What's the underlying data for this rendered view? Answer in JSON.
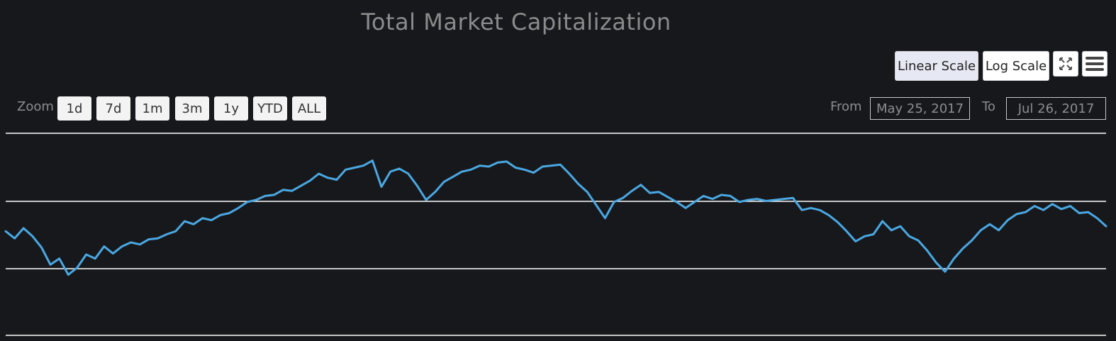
{
  "title": "Total Market Capitalization",
  "scale_buttons": {
    "linear": "Linear Scale",
    "log": "Log Scale",
    "selected": "linear"
  },
  "icons": {
    "fullscreen": "fullscreen-icon",
    "menu": "hamburger-menu-icon"
  },
  "zoom": {
    "label": "Zoom",
    "buttons": [
      "1d",
      "7d",
      "1m",
      "3m",
      "1y",
      "YTD",
      "ALL"
    ]
  },
  "range": {
    "from_label": "From",
    "from_value": "May 25, 2017",
    "to_label": "To",
    "to_value": "Jul 26, 2017"
  },
  "colors": {
    "background": "#17181c",
    "series": "#4aa8e2",
    "grid": "#ffffff",
    "title": "#8b8b8b"
  },
  "chart_data": {
    "type": "line",
    "title": "Total Market Capitalization",
    "grid": true,
    "x_range": [
      "May 25, 2017",
      "Jul 26, 2017"
    ],
    "ylim": [
      0,
      100
    ],
    "note_units": "relative values (no y-axis labels shown)",
    "series": [
      {
        "name": "",
        "values": [
          51.5,
          48.0,
          53.0,
          49.0,
          43.5,
          35.0,
          38.0,
          30.0,
          33.5,
          40.0,
          38.0,
          44.0,
          40.5,
          44.0,
          46.0,
          45.0,
          47.5,
          48.0,
          50.0,
          51.5,
          56.5,
          55.0,
          58.0,
          57.0,
          59.5,
          60.5,
          63.0,
          66.0,
          67.0,
          69.0,
          69.5,
          72.0,
          71.5,
          74.0,
          76.5,
          80.0,
          78.0,
          77.0,
          82.0,
          83.0,
          84.0,
          86.5,
          73.5,
          81.0,
          82.5,
          80.0,
          74.0,
          67.0,
          71.0,
          76.0,
          78.5,
          81.0,
          82.0,
          84.0,
          83.5,
          85.5,
          86.0,
          83.0,
          82.0,
          80.5,
          83.5,
          84.0,
          84.5,
          80.0,
          75.0,
          71.0,
          64.5,
          58.0,
          66.0,
          68.0,
          71.5,
          74.5,
          70.5,
          71.0,
          68.5,
          66.0,
          63.0,
          66.0,
          69.0,
          67.5,
          69.5,
          69.0,
          66.0,
          67.0,
          67.5,
          66.5,
          67.0,
          67.5,
          68.0,
          62.0,
          63.0,
          62.0,
          59.5,
          56.0,
          51.5,
          46.5,
          49.0,
          50.0,
          56.5,
          52.0,
          54.0,
          49.0,
          47.0,
          42.0,
          36.0,
          31.5,
          38.0,
          43.0,
          47.0,
          52.0,
          55.0,
          52.0,
          57.0,
          60.0,
          61.0,
          64.0,
          62.0,
          65.0,
          62.5,
          64.0,
          60.5,
          61.0,
          58.0,
          54.0
        ]
      }
    ]
  }
}
